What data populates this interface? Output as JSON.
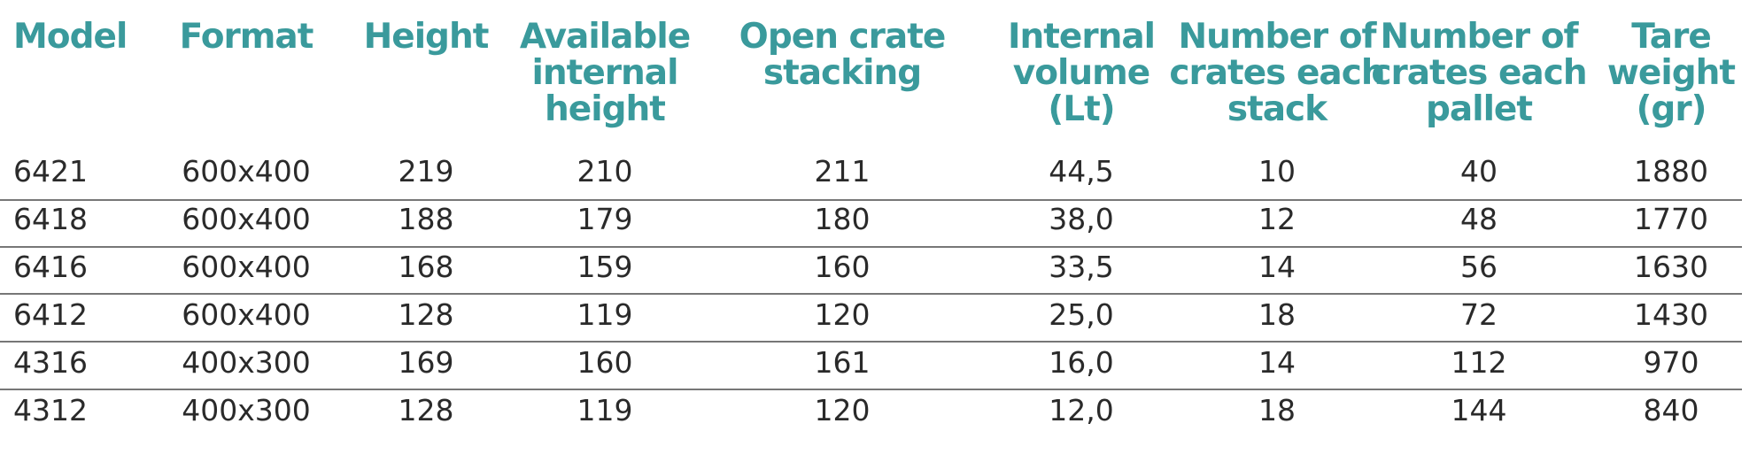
{
  "table": {
    "columns": [
      {
        "lines": [
          "Model"
        ]
      },
      {
        "lines": [
          "Format"
        ]
      },
      {
        "lines": [
          "Height"
        ]
      },
      {
        "lines": [
          "Available",
          "internal",
          "height"
        ]
      },
      {
        "lines": [
          "Open crate",
          "stacking"
        ]
      },
      {
        "lines": [
          "Internal",
          "volume",
          "(Lt)"
        ]
      },
      {
        "lines": [
          "Number of",
          "crates each",
          "stack"
        ]
      },
      {
        "lines": [
          "Number of",
          "crates each",
          "pallet"
        ]
      },
      {
        "lines": [
          "Tare",
          "weight",
          "(gr)"
        ]
      }
    ],
    "rows": [
      [
        "6421",
        "600x400",
        "219",
        "210",
        "211",
        "44,5",
        "10",
        "40",
        "1880"
      ],
      [
        "6418",
        "600x400",
        "188",
        "179",
        "180",
        "38,0",
        "12",
        "48",
        "1770"
      ],
      [
        "6416",
        "600x400",
        "168",
        "159",
        "160",
        "33,5",
        "14",
        "56",
        "1630"
      ],
      [
        "6412",
        "600x400",
        "128",
        "119",
        "120",
        "25,0",
        "18",
        "72",
        "1430"
      ],
      [
        "4316",
        "400x300",
        "169",
        "160",
        "161",
        "16,0",
        "14",
        "112",
        "970"
      ],
      [
        "4312",
        "400x300",
        "128",
        "119",
        "120",
        "12,0",
        "18",
        "144",
        "840"
      ]
    ]
  }
}
